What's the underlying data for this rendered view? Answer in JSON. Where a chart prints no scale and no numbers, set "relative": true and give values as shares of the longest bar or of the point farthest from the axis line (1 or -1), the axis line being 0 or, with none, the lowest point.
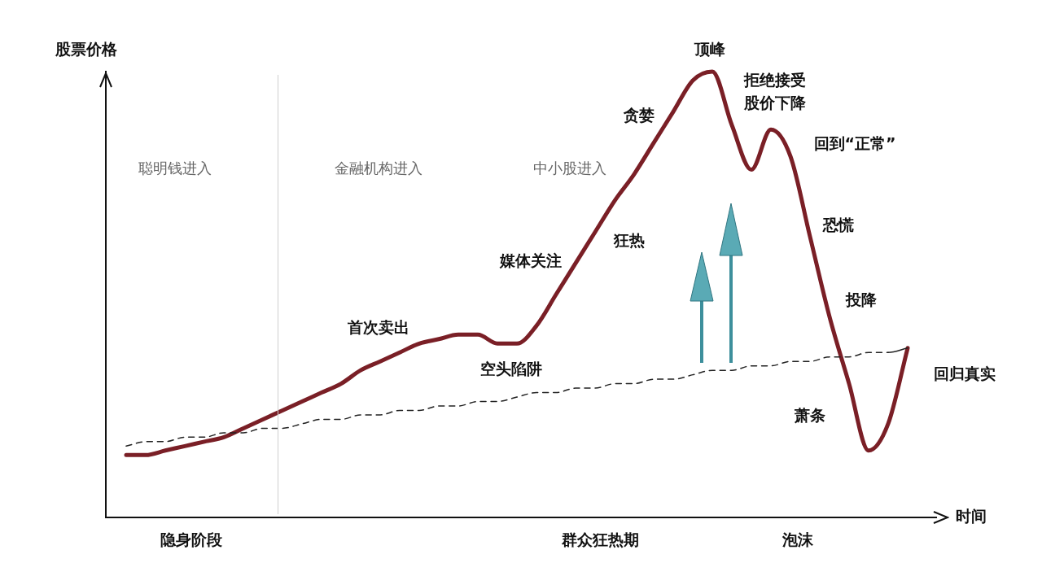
{
  "chart_data": {
    "type": "line",
    "relative": true,
    "xlabel": "时间",
    "ylabel": "股票价格",
    "categories": [
      null,
      null,
      null,
      null,
      null,
      null,
      null,
      null,
      null,
      null,
      null,
      null,
      null,
      null,
      null,
      null,
      null,
      null,
      null,
      null,
      null,
      null,
      null,
      null,
      null,
      null,
      null,
      null,
      null,
      null,
      null,
      null,
      null,
      null,
      null,
      null,
      null,
      null,
      null,
      null,
      null
    ],
    "series": [
      {
        "color": "#7a1f26",
        "line_style": "solid",
        "values": [
          0.14,
          0.14,
          0.15,
          0.16,
          0.17,
          0.18,
          0.2,
          0.22,
          0.24,
          0.26,
          0.28,
          0.3,
          0.33,
          0.35,
          0.37,
          0.39,
          0.4,
          0.41,
          0.41,
          0.39,
          0.39,
          0.43,
          0.5,
          0.57,
          0.64,
          0.71,
          0.77,
          0.84,
          0.91,
          0.98,
          1,
          0.88,
          0.78,
          0.87,
          0.81,
          0.63,
          0.45,
          0.3,
          0.15,
          0.21,
          0.38
        ]
      },
      {
        "color": "#222222",
        "line_style": "dashed",
        "values": [
          0.16,
          0.17,
          0.17,
          0.18,
          0.18,
          0.19,
          0.19,
          0.2,
          0.2,
          0.21,
          0.22,
          0.22,
          0.23,
          0.23,
          0.24,
          0.24,
          0.25,
          0.25,
          0.26,
          0.26,
          0.27,
          0.28,
          0.28,
          0.29,
          0.29,
          0.3,
          0.3,
          0.31,
          0.31,
          0.32,
          0.33,
          0.33,
          0.34,
          0.34,
          0.35,
          0.35,
          0.36,
          0.36,
          0.37,
          0.37,
          0.38
        ]
      }
    ],
    "annotations": [
      "聪明钱进入",
      "金融机构进入",
      "中小股进入",
      "首次卖出",
      "空头陷阱",
      "媒体关注",
      "狂热",
      "贪婪",
      "顶峰",
      "拒绝接受",
      "股价下降",
      "回到“正常”",
      "恐慌",
      "投降",
      "萧条",
      "回归真实",
      "隐身阶段",
      "群众狂热期",
      "泡沫"
    ],
    "grid": false,
    "legend": false,
    "marker": "none"
  }
}
